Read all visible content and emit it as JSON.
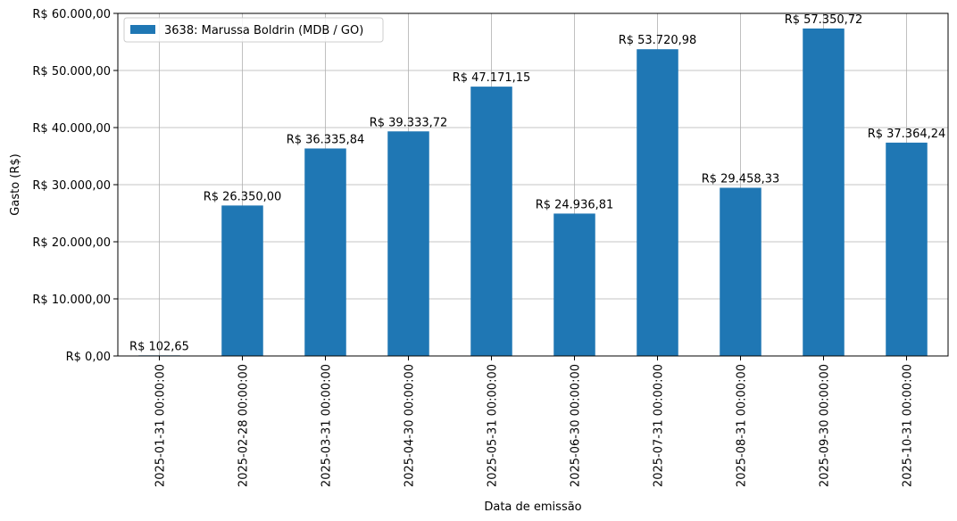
{
  "chart_data": {
    "type": "bar",
    "categories": [
      "2025-01-31 00:00:00",
      "2025-02-28 00:00:00",
      "2025-03-31 00:00:00",
      "2025-04-30 00:00:00",
      "2025-05-31 00:00:00",
      "2025-06-30 00:00:00",
      "2025-07-31 00:00:00",
      "2025-08-31 00:00:00",
      "2025-09-30 00:00:00",
      "2025-10-31 00:00:00"
    ],
    "series": [
      {
        "name": "3638: Marussa Boldrin (MDB / GO)",
        "color": "#1f77b4",
        "values": [
          102.65,
          26350.0,
          36335.84,
          39333.72,
          47171.15,
          24936.81,
          53720.98,
          29458.33,
          57350.72,
          37364.24
        ],
        "labels": [
          "R$ 102,65",
          "R$ 26.350,00",
          "R$ 36.335,84",
          "R$ 39.333,72",
          "R$ 47.171,15",
          "R$ 24.936,81",
          "R$ 53.720,98",
          "R$ 29.458,33",
          "R$ 57.350,72",
          "R$ 37.364,24"
        ]
      }
    ],
    "xlabel": "Data de emissão",
    "ylabel": "Gasto (R$)",
    "ylim": [
      0,
      60000
    ],
    "yticks": [
      0,
      10000,
      20000,
      30000,
      40000,
      50000,
      60000
    ],
    "ytick_labels": [
      "R$ 0,00",
      "R$ 10.000,00",
      "R$ 20.000,00",
      "R$ 30.000,00",
      "R$ 40.000,00",
      "R$ 50.000,00",
      "R$ 60.000,00"
    ],
    "grid": true,
    "legend_position": "top-left"
  }
}
